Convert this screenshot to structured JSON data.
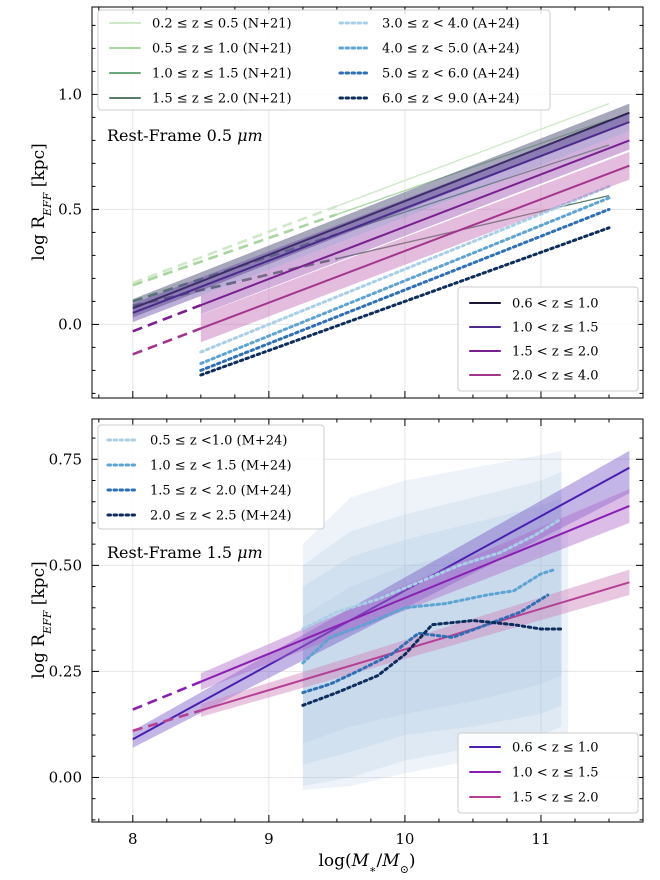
{
  "chart_data": [
    {
      "type": "line",
      "ylabel": "log R_EFF [kpc]",
      "xlabel": "",
      "xlim": [
        7.7,
        11.75
      ],
      "ylim": [
        -0.32,
        1.38
      ],
      "xticks": [
        8,
        9,
        10,
        11
      ],
      "yticks": [
        0.0,
        0.5,
        1.0
      ],
      "ytick_labels": [
        "0.0",
        "0.5",
        "1.0"
      ],
      "grid": true,
      "annotation": {
        "prefix": "Rest-Frame 0.5 ",
        "unit": "μm"
      },
      "legend_top_position": "top",
      "legend_bottom_position": "lower right",
      "reference_series": [
        {
          "name": "0.2 ≤ z ≤ 0.5 (N+21)",
          "color": "#cfe8c8",
          "style": "solid",
          "width": 1.3,
          "x": [
            8.0,
            11.5
          ],
          "y": [
            0.18,
            0.96
          ],
          "dashed_until": 9.5
        },
        {
          "name": "0.5 ≤ z ≤ 1.0 (N+21)",
          "color": "#a8d5a0",
          "style": "solid",
          "width": 1.3,
          "x": [
            8.0,
            11.5
          ],
          "y": [
            0.17,
            0.89
          ],
          "dashed_until": 9.5
        },
        {
          "name": "1.0 ≤ z ≤ 1.5 (N+21)",
          "color": "#6aa77a",
          "style": "solid",
          "width": 1.3,
          "x": [
            8.0,
            11.5
          ],
          "y": [
            0.1,
            0.78
          ],
          "dashed_until": 9.5
        },
        {
          "name": "1.5 ≤ z ≤ 2.0 (N+21)",
          "color": "#5a7d66",
          "style": "solid",
          "width": 1.3,
          "x": [
            8.0,
            11.5
          ],
          "y": [
            0.08,
            0.56
          ],
          "dashed_until": 9.5
        },
        {
          "name": "3.0 ≤ z < 4.0 (A+24)",
          "color": "#a9cfe8",
          "style": "dotted",
          "width": 3,
          "x": [
            8.5,
            11.5
          ],
          "y": [
            -0.12,
            0.6
          ]
        },
        {
          "name": "4.0 ≤ z < 5.0 (A+24)",
          "color": "#5ea4d2",
          "style": "dotted",
          "width": 3,
          "x": [
            8.5,
            11.5
          ],
          "y": [
            -0.17,
            0.55
          ]
        },
        {
          "name": "5.0 ≤ z < 6.0 (A+24)",
          "color": "#2e6fb5",
          "style": "dotted",
          "width": 3,
          "x": [
            8.5,
            11.5
          ],
          "y": [
            -0.2,
            0.5
          ]
        },
        {
          "name": "6.0 ≤ z < 9.0 (A+24)",
          "color": "#0e2d5c",
          "style": "dotted",
          "width": 3,
          "x": [
            8.5,
            11.5
          ],
          "y": [
            -0.22,
            0.42
          ]
        }
      ],
      "series": [
        {
          "name": "0.6 < z ≤ 1.0",
          "color": "#1a1535",
          "x": [
            8.0,
            11.65
          ],
          "y": [
            0.07,
            0.92
          ],
          "dashed_until": 8.0,
          "band": 0.04,
          "band_color": "#3b3b6b"
        },
        {
          "name": "1.0 < z ≤ 1.5",
          "color": "#4b2a8c",
          "x": [
            8.0,
            11.65
          ],
          "y": [
            0.05,
            0.88
          ],
          "dashed_until": 8.0,
          "band": 0.04,
          "band_color": "#6a4ca8"
        },
        {
          "name": "1.5 < z ≤ 2.0",
          "color": "#7a1f8f",
          "x": [
            8.0,
            11.65
          ],
          "y": [
            -0.03,
            0.8
          ],
          "dashed_until": 8.5,
          "band": 0.04,
          "band_color": "#9c4fb0"
        },
        {
          "name": "2.0 < z ≤ 4.0",
          "color": "#a3358e",
          "x": [
            8.0,
            11.65
          ],
          "y": [
            -0.13,
            0.69
          ],
          "dashed_until": 8.5,
          "band": 0.06,
          "band_color": "#c46ab4"
        }
      ]
    },
    {
      "type": "line",
      "ylabel": "log R_EFF [kpc]",
      "xlabel": "log(M*/M⊙)",
      "xlim": [
        7.7,
        11.75
      ],
      "ylim": [
        -0.105,
        0.845
      ],
      "xticks": [
        8,
        9,
        10,
        11
      ],
      "xtick_labels": [
        "8",
        "9",
        "10",
        "11"
      ],
      "yticks": [
        0.0,
        0.25,
        0.5,
        0.75
      ],
      "ytick_labels": [
        "0.00",
        "0.25",
        "0.50",
        "0.75"
      ],
      "grid": true,
      "annotation": {
        "prefix": "Rest-Frame 1.5 ",
        "unit": "μm"
      },
      "legend_top_position": "top left",
      "legend_bottom_position": "lower right",
      "reference_bands": [
        {
          "x": [
            9.25,
            9.6,
            10.0,
            10.5,
            11.0,
            11.15
          ],
          "lo": [
            0.08,
            0.12,
            0.15,
            0.18,
            0.22,
            0.24
          ],
          "hi": [
            0.55,
            0.66,
            0.7,
            0.73,
            0.76,
            0.77
          ]
        },
        {
          "x": [
            9.25,
            9.6,
            10.0,
            10.5,
            11.0,
            11.15
          ],
          "lo": [
            0.03,
            0.06,
            0.1,
            0.12,
            0.15,
            0.17
          ],
          "hi": [
            0.5,
            0.58,
            0.62,
            0.66,
            0.7,
            0.72
          ]
        },
        {
          "x": [
            9.25,
            9.6,
            10.0,
            10.5,
            11.0,
            11.15
          ],
          "lo": [
            -0.02,
            0.0,
            0.04,
            0.07,
            0.1,
            0.12
          ],
          "hi": [
            0.45,
            0.52,
            0.56,
            0.6,
            0.64,
            0.66
          ]
        },
        {
          "x": [
            9.25,
            9.6,
            10.0,
            10.5,
            11.0,
            11.2
          ],
          "lo": [
            -0.03,
            -0.02,
            0.01,
            0.04,
            0.06,
            0.08
          ],
          "hi": [
            0.38,
            0.45,
            0.5,
            0.53,
            0.56,
            0.58
          ]
        }
      ],
      "reference_series": [
        {
          "name": "0.5 ≤ z <1.0 (M+24)",
          "color": "#a9cfe8",
          "style": "dotted",
          "width": 3,
          "x": [
            9.25,
            9.5,
            9.8,
            10.1,
            10.4,
            10.7,
            10.95,
            11.15
          ],
          "y": [
            0.35,
            0.39,
            0.42,
            0.46,
            0.5,
            0.53,
            0.57,
            0.61
          ]
        },
        {
          "name": "1.0 ≤ z < 1.5 (M+24)",
          "color": "#5ea4d2",
          "style": "dotted",
          "width": 3,
          "x": [
            9.25,
            9.45,
            9.7,
            10.0,
            10.3,
            10.6,
            10.8,
            11.0,
            11.1
          ],
          "y": [
            0.27,
            0.33,
            0.36,
            0.4,
            0.41,
            0.43,
            0.44,
            0.48,
            0.49
          ]
        },
        {
          "name": "1.5 ≤ z < 2.0 (M+24)",
          "color": "#2e6fb5",
          "style": "dotted",
          "width": 3,
          "x": [
            9.25,
            9.45,
            9.65,
            9.9,
            10.1,
            10.35,
            10.6,
            10.85,
            11.05
          ],
          "y": [
            0.2,
            0.22,
            0.25,
            0.29,
            0.34,
            0.33,
            0.36,
            0.39,
            0.43
          ]
        },
        {
          "name": "2.0 ≤ z < 2.5 (M+24)",
          "color": "#0e2d5c",
          "style": "dotted",
          "width": 3,
          "x": [
            9.25,
            9.5,
            9.8,
            10.0,
            10.2,
            10.5,
            10.8,
            11.0,
            11.15
          ],
          "y": [
            0.17,
            0.2,
            0.24,
            0.29,
            0.36,
            0.37,
            0.36,
            0.35,
            0.35
          ]
        }
      ],
      "series": [
        {
          "name": "0.6 < z ≤ 1.0",
          "color": "#4a1fb0",
          "x": [
            8.0,
            11.65
          ],
          "y": [
            0.09,
            0.73
          ],
          "dashed_until": 8.0,
          "band_lo": [
            0.02,
            0.06
          ],
          "band_hi": [
            0.02,
            0.04
          ],
          "band_color": "#7b5cc6"
        },
        {
          "name": "1.0 < z ≤ 1.5",
          "color": "#8a1fb3",
          "x": [
            8.0,
            11.65
          ],
          "y": [
            0.16,
            0.64
          ],
          "dashed_until": 8.5,
          "band_lo": [
            0.02,
            0.04
          ],
          "band_hi": [
            0.02,
            0.04
          ],
          "band_color": "#b06ccc"
        },
        {
          "name": "1.5 < z ≤ 2.0",
          "color": "#b53f94",
          "x": [
            8.0,
            11.65
          ],
          "y": [
            0.11,
            0.46
          ],
          "dashed_until": 8.5,
          "band_lo": [
            0.015,
            0.03
          ],
          "band_hi": [
            0.015,
            0.03
          ],
          "band_color": "#d183bd"
        }
      ]
    }
  ]
}
